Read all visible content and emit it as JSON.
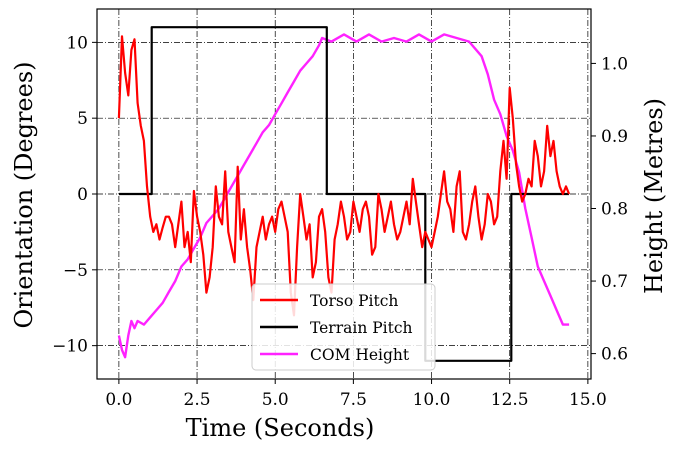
{
  "chart_data": {
    "type": "line",
    "x_label": "Time (Seconds)",
    "y_label_left": "Orientation (Degrees)",
    "y_label_right": "Height (Metres)",
    "xlim": [
      -0.7,
      15.1
    ],
    "ylim_left": [
      -12.2,
      12.2
    ],
    "ylim_right": [
      0.565,
      1.075
    ],
    "x_ticks": [
      0.0,
      2.5,
      5.0,
      7.5,
      10.0,
      12.5,
      15.0
    ],
    "x_tick_labels": [
      "0.0",
      "2.5",
      "5.0",
      "7.5",
      "10.0",
      "12.5",
      "15.0"
    ],
    "y_ticks_left": [
      -10,
      -5,
      0,
      5,
      10
    ],
    "y_tick_labels_left": [
      "−10",
      "−5",
      "0",
      "5",
      "10"
    ],
    "y_ticks_right": [
      0.6,
      0.7,
      0.8,
      0.9,
      1.0
    ],
    "y_tick_labels_right": [
      "0.6",
      "0.7",
      "0.8",
      "0.9",
      "1.0"
    ],
    "grid": true,
    "legend_position": "bottom-center",
    "series": [
      {
        "name": "Torso Pitch",
        "axis": "left",
        "color": "#ff0000",
        "x": [
          0.0,
          0.1,
          0.2,
          0.3,
          0.4,
          0.5,
          0.6,
          0.7,
          0.8,
          0.9,
          1.0,
          1.1,
          1.2,
          1.3,
          1.4,
          1.5,
          1.6,
          1.7,
          1.8,
          1.9,
          2.0,
          2.1,
          2.2,
          2.3,
          2.4,
          2.5,
          2.6,
          2.7,
          2.8,
          2.9,
          3.0,
          3.1,
          3.2,
          3.3,
          3.4,
          3.5,
          3.6,
          3.7,
          3.8,
          3.9,
          4.0,
          4.1,
          4.2,
          4.3,
          4.4,
          4.5,
          4.6,
          4.7,
          4.8,
          4.9,
          5.0,
          5.1,
          5.2,
          5.3,
          5.4,
          5.5,
          5.6,
          5.7,
          5.8,
          5.9,
          6.0,
          6.1,
          6.2,
          6.3,
          6.4,
          6.5,
          6.6,
          6.7,
          6.8,
          6.9,
          7.0,
          7.1,
          7.2,
          7.3,
          7.4,
          7.5,
          7.6,
          7.7,
          7.8,
          7.9,
          8.0,
          8.1,
          8.2,
          8.3,
          8.4,
          8.5,
          8.6,
          8.7,
          8.8,
          8.9,
          9.0,
          9.1,
          9.2,
          9.3,
          9.4,
          9.5,
          9.6,
          9.7,
          9.8,
          9.9,
          10.0,
          10.1,
          10.2,
          10.3,
          10.4,
          10.5,
          10.6,
          10.7,
          10.8,
          10.9,
          11.0,
          11.1,
          11.2,
          11.3,
          11.4,
          11.5,
          11.6,
          11.7,
          11.8,
          11.9,
          12.0,
          12.1,
          12.2,
          12.3,
          12.4,
          12.5,
          12.6,
          12.7,
          12.8,
          12.9,
          13.0,
          13.1,
          13.2,
          13.3,
          13.4,
          13.5,
          13.6,
          13.7,
          13.8,
          13.9,
          14.0,
          14.1,
          14.2,
          14.3,
          14.4
        ],
        "y": [
          5.0,
          10.4,
          8.0,
          6.5,
          9.5,
          10.2,
          6.0,
          4.5,
          3.5,
          0.5,
          -1.5,
          -2.5,
          -2.0,
          -3.0,
          -2.2,
          -1.5,
          -1.5,
          -2.0,
          -3.5,
          -2.0,
          -0.5,
          -3.5,
          -2.5,
          -4.5,
          0.2,
          -1.5,
          -2.5,
          -4.0,
          -6.5,
          -5.5,
          -3.5,
          0.5,
          -1.5,
          -2.0,
          1.5,
          -2.5,
          -3.5,
          -4.5,
          1.8,
          -3.0,
          -1.0,
          -3.5,
          -5.0,
          -7.0,
          -3.5,
          -2.5,
          -1.5,
          -3.0,
          -2.0,
          -1.5,
          -2.5,
          -1.0,
          -0.5,
          -1.5,
          -2.5,
          -6.5,
          -8.0,
          -3.5,
          0.0,
          -1.5,
          -3.0,
          -2.0,
          -5.5,
          -4.5,
          -1.5,
          -1.0,
          -2.5,
          -5.5,
          -6.5,
          -3.0,
          -2.0,
          -0.5,
          -1.5,
          -3.0,
          -2.5,
          -0.5,
          -1.5,
          -2.5,
          -1.0,
          -0.5,
          -1.5,
          -4.0,
          -3.5,
          0.0,
          -1.0,
          -2.5,
          -1.5,
          -0.5,
          -2.0,
          -3.0,
          -2.5,
          -1.5,
          -0.5,
          -2.0,
          1.0,
          -0.5,
          -2.0,
          -3.5,
          -2.5,
          -3.0,
          -3.5,
          -2.5,
          -1.5,
          0.0,
          1.5,
          -0.5,
          -1.0,
          -2.5,
          0.5,
          1.5,
          -2.5,
          -3.0,
          -2.0,
          -0.5,
          0.5,
          -1.5,
          -3.0,
          -2.0,
          0.0,
          -0.5,
          -2.0,
          -1.5,
          1.5,
          3.5,
          1.0,
          7.0,
          5.0,
          2.0,
          0.5,
          -0.5,
          0.0,
          1.0,
          0.5,
          3.5,
          2.5,
          0.5,
          1.5,
          4.5,
          2.5,
          3.5,
          1.5,
          0.5,
          0.0,
          0.5,
          0.0
        ]
      },
      {
        "name": "Terrain Pitch",
        "axis": "left",
        "color": "#000000",
        "x": [
          0.0,
          1.05,
          1.05,
          6.65,
          6.65,
          9.8,
          9.8,
          12.55,
          12.55,
          14.4
        ],
        "y": [
          0,
          0,
          11,
          11,
          0,
          0,
          -11,
          -11,
          0,
          0
        ]
      },
      {
        "name": "COM Height",
        "axis": "right",
        "color": "#ff22ff",
        "x": [
          0.0,
          0.1,
          0.2,
          0.3,
          0.4,
          0.5,
          0.6,
          0.8,
          1.0,
          1.2,
          1.4,
          1.6,
          1.8,
          2.0,
          2.2,
          2.4,
          2.6,
          2.8,
          3.0,
          3.2,
          3.4,
          3.6,
          3.8,
          4.0,
          4.2,
          4.4,
          4.6,
          4.8,
          5.0,
          5.2,
          5.4,
          5.6,
          5.8,
          6.0,
          6.2,
          6.4,
          6.5,
          6.8,
          7.2,
          7.6,
          8.0,
          8.4,
          8.8,
          9.2,
          9.6,
          10.0,
          10.4,
          10.8,
          11.2,
          11.6,
          11.8,
          12.0,
          12.2,
          12.4,
          12.6,
          12.8,
          13.0,
          13.2,
          13.4,
          13.6,
          13.8,
          14.0,
          14.2,
          14.4
        ],
        "y": [
          0.625,
          0.605,
          0.595,
          0.625,
          0.645,
          0.635,
          0.645,
          0.64,
          0.65,
          0.66,
          0.67,
          0.685,
          0.7,
          0.72,
          0.73,
          0.745,
          0.76,
          0.78,
          0.79,
          0.8,
          0.815,
          0.83,
          0.845,
          0.86,
          0.875,
          0.89,
          0.905,
          0.915,
          0.93,
          0.945,
          0.96,
          0.975,
          0.99,
          1.0,
          1.01,
          1.025,
          1.035,
          1.03,
          1.04,
          1.03,
          1.04,
          1.03,
          1.035,
          1.03,
          1.04,
          1.03,
          1.04,
          1.035,
          1.03,
          1.01,
          0.985,
          0.95,
          0.93,
          0.9,
          0.88,
          0.85,
          0.8,
          0.76,
          0.72,
          0.7,
          0.68,
          0.66,
          0.64,
          0.64
        ]
      }
    ]
  }
}
